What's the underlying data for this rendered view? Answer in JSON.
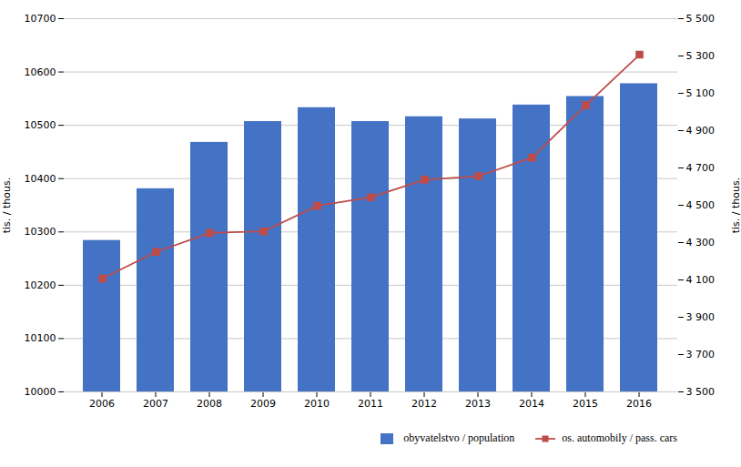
{
  "chart_data": {
    "type": "bar",
    "categories": [
      "2006",
      "2007",
      "2008",
      "2009",
      "2010",
      "2011",
      "2012",
      "2013",
      "2014",
      "2015",
      "2016"
    ],
    "series": [
      {
        "name": "obyvatelstvo / population",
        "type": "bar",
        "color": "#4472C4",
        "values": [
          10284,
          10381,
          10468,
          10507,
          10533,
          10507,
          10516,
          10512,
          10538,
          10554,
          10578
        ]
      },
      {
        "name": "os. automobily / pass. cars",
        "type": "line",
        "color": "#BE4B48",
        "marker": "square",
        "axis": "y2",
        "values": [
          4107,
          4250,
          4352,
          4360,
          4497,
          4543,
          4637,
          4656,
          4755,
          5036,
          5307
        ]
      }
    ],
    "ylabel": "tis. / thous.",
    "y2label": "tis. / thous.",
    "ylim": [
      10000,
      10700
    ],
    "yticks": [
      10000,
      10100,
      10200,
      10300,
      10400,
      10500,
      10600,
      10700
    ],
    "y2lim": [
      3500,
      5500
    ],
    "y2ticks": [
      {
        "value": 3500,
        "label": "3 500"
      },
      {
        "value": 3700,
        "label": "3 700"
      },
      {
        "value": 3900,
        "label": "3 900"
      },
      {
        "value": 4100,
        "label": "4 100"
      },
      {
        "value": 4300,
        "label": "4 300"
      },
      {
        "value": 4500,
        "label": "4 500"
      },
      {
        "value": 4700,
        "label": "4 700"
      },
      {
        "value": 4900,
        "label": "4 900"
      },
      {
        "value": 5100,
        "label": "5 100"
      },
      {
        "value": 5300,
        "label": "5 300"
      },
      {
        "value": 5500,
        "label": "5 500"
      }
    ],
    "grid": true,
    "legend": "lower right"
  }
}
